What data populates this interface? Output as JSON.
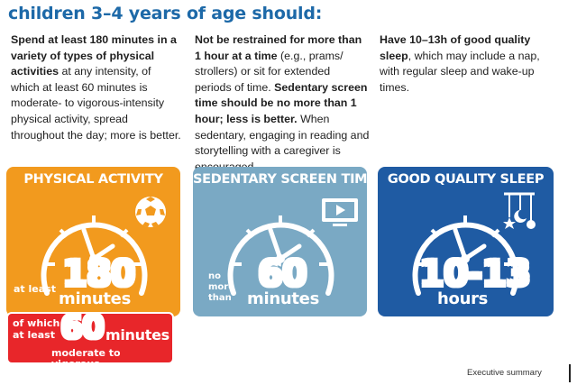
{
  "heading": "children 3–4 years of age should:",
  "guidelines": [
    {
      "bold": "Spend at least 180 minutes in a variety of types of physical activities",
      "text": " at any intensity, of which at least 60 minutes is moderate- to vigorous-intensity physical activity, spread throughout the day; more is better."
    },
    {
      "bold": "Not be restrained for more than 1 hour at a time",
      "text": " (e.g., prams/ strollers) or sit for extended periods of time. ",
      "bold2": "Sedentary screen time should be no more than 1 hour; less is better.",
      "text2": " When sedentary, engaging in reading and storytelling with a caregiver is encouraged."
    },
    {
      "bold": "Have 10–13h of good quality sleep",
      "text": ", which may include a nap, with regular sleep and wake-up times."
    }
  ],
  "cards": {
    "physical_activity": {
      "title": "PHYSICAL ACTIVITY",
      "prefix": "at least",
      "value": "180",
      "unit": "minutes",
      "color": "#f29a1e",
      "icon": "soccer-ball-icon"
    },
    "screen_time": {
      "title": "SEDENTARY SCREEN TIME",
      "prefix_line1": "no",
      "prefix_line2": "more",
      "prefix_line3": "than",
      "value": "60",
      "unit": "minutes",
      "color": "#7aa9c4",
      "icon": "tv-screen-icon"
    },
    "sleep": {
      "title": "GOOD QUALITY SLEEP",
      "value": "10-13",
      "unit": "hours",
      "color": "#1f5ba3",
      "icon": "moon-stars-mobile-icon"
    }
  },
  "badge": {
    "line1": "of which",
    "line2": "at least",
    "value": "60",
    "unit": "minutes",
    "caption": "moderate to vigorous",
    "color": "#e8262a"
  },
  "footer": "Executive summary"
}
